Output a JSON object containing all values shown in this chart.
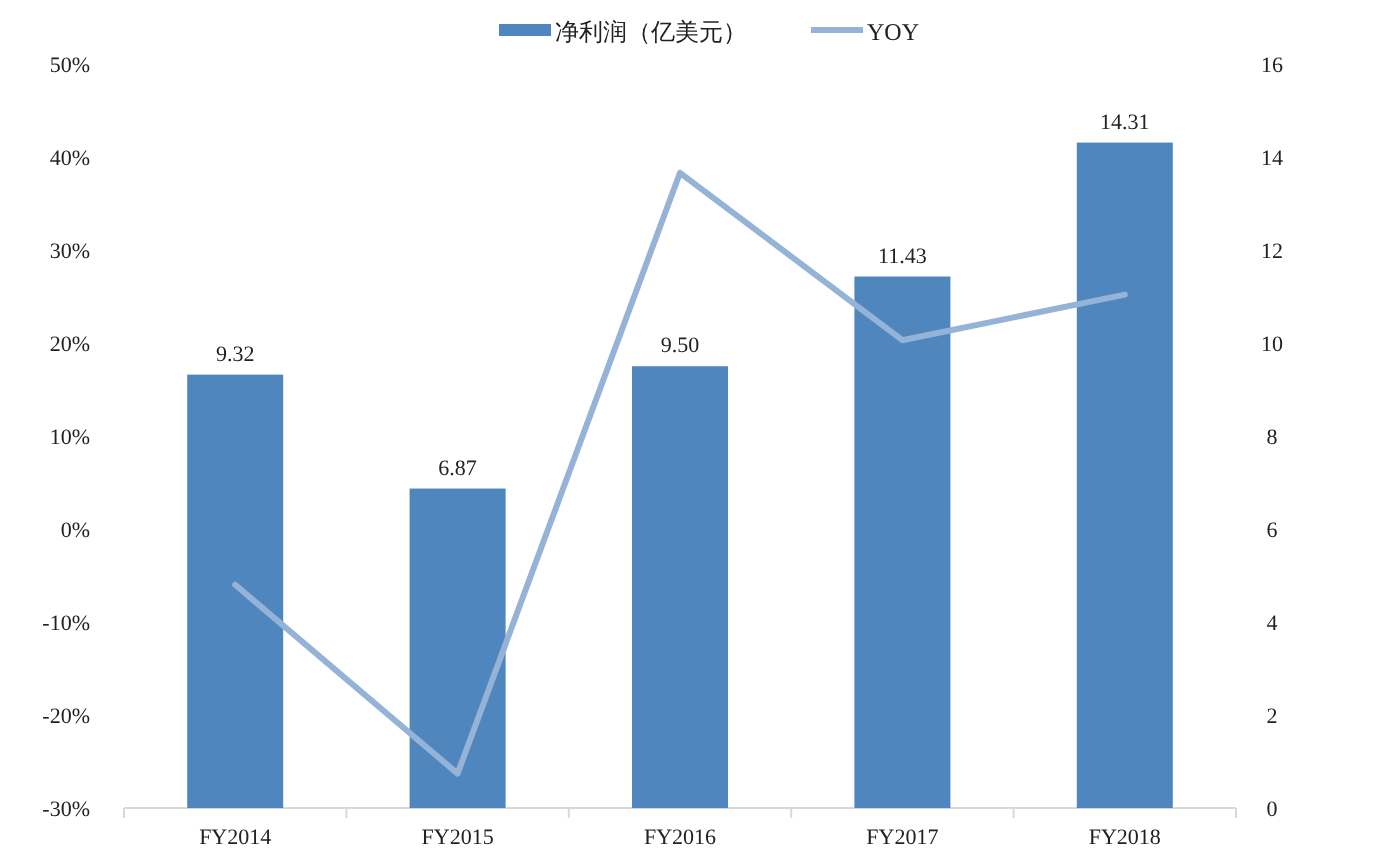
{
  "chart_data": {
    "type": "bar",
    "categories": [
      "FY2014",
      "FY2015",
      "FY2016",
      "FY2017",
      "FY2018"
    ],
    "series": [
      {
        "name": "净利润（亿美元）",
        "axis": "y2",
        "color": "#4f86bd",
        "values": [
          9.32,
          6.87,
          9.5,
          11.43,
          14.31
        ],
        "value_labels": [
          "9.32",
          "6.87",
          "9.50",
          "11.43",
          "14.31"
        ]
      },
      {
        "name": "YOY",
        "type": "line",
        "color": "#95b3d7",
        "values": [
          -6.0,
          -26.3,
          38.3,
          20.3,
          25.2
        ]
      }
    ],
    "ylim": [
      -30,
      50
    ],
    "yticks": [
      {
        "value": -30,
        "label": "-30%"
      },
      {
        "value": -20,
        "label": "-20%"
      },
      {
        "value": -10,
        "label": "-10%"
      },
      {
        "value": 0,
        "label": "0%"
      },
      {
        "value": 10,
        "label": "10%"
      },
      {
        "value": 20,
        "label": "20%"
      },
      {
        "value": 30,
        "label": "30%"
      },
      {
        "value": 40,
        "label": "40%"
      },
      {
        "value": 50,
        "label": "50%"
      }
    ],
    "y2lim": [
      0,
      16
    ],
    "y2ticks": [
      0,
      2,
      4,
      6,
      8,
      10,
      12,
      14,
      16
    ],
    "legend": "top",
    "grid": false,
    "marker": "none"
  }
}
